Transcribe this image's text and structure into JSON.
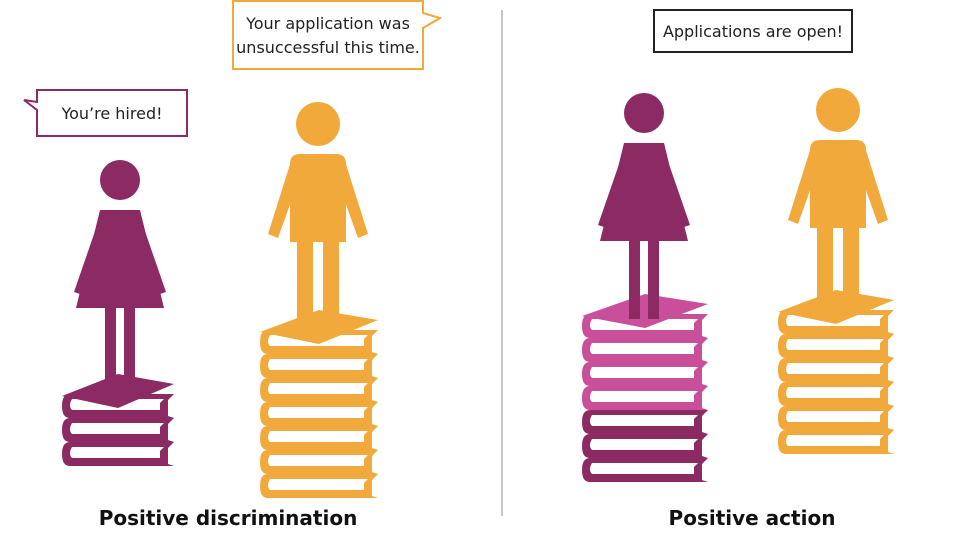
{
  "panels": [
    {
      "caption": "Positive discrimination",
      "bubbles": [
        {
          "lines": [
            "You’re hired!"
          ]
        },
        {
          "lines": [
            "Your application was",
            "unsuccessful this time."
          ]
        }
      ]
    },
    {
      "caption": "Positive action",
      "bubbles": [
        {
          "lines": [
            "Applications are open!"
          ]
        }
      ]
    }
  ]
}
